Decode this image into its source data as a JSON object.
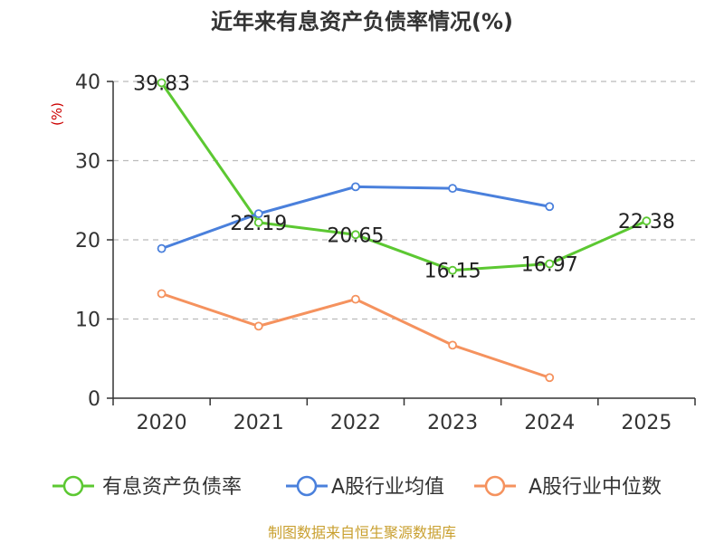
{
  "chart_data": {
    "type": "line",
    "title": "近年来有息资产负债率情况(%)",
    "ylabel": "(%)",
    "xlabel": "",
    "ylim": [
      0,
      40
    ],
    "yticks": [
      0,
      10,
      20,
      30,
      40
    ],
    "categories": [
      "2020",
      "2021",
      "2022",
      "2023",
      "2024",
      "2025"
    ],
    "grid": true,
    "legend_position": "bottom",
    "series": [
      {
        "name": "有息资产负债率",
        "color": "#5cc832",
        "values": [
          39.83,
          22.19,
          20.65,
          16.15,
          16.97,
          22.38
        ],
        "labels": [
          "39.83",
          "22.19",
          "20.65",
          "16.15",
          "16.97",
          "22.38"
        ]
      },
      {
        "name": "A股行业均值",
        "color": "#4a80dc",
        "values": [
          18.9,
          23.3,
          26.7,
          26.5,
          24.2,
          null
        ]
      },
      {
        "name": "A股行业中位数",
        "color": "#f5925e",
        "values": [
          13.2,
          9.1,
          12.5,
          6.7,
          2.6,
          null
        ]
      }
    ]
  },
  "source_text": "制图数据来自恒生聚源数据库",
  "colors": {
    "axis": "#333333",
    "grid": "#bbbbbb",
    "unit": "#cc0000",
    "source": "#c9a030"
  }
}
